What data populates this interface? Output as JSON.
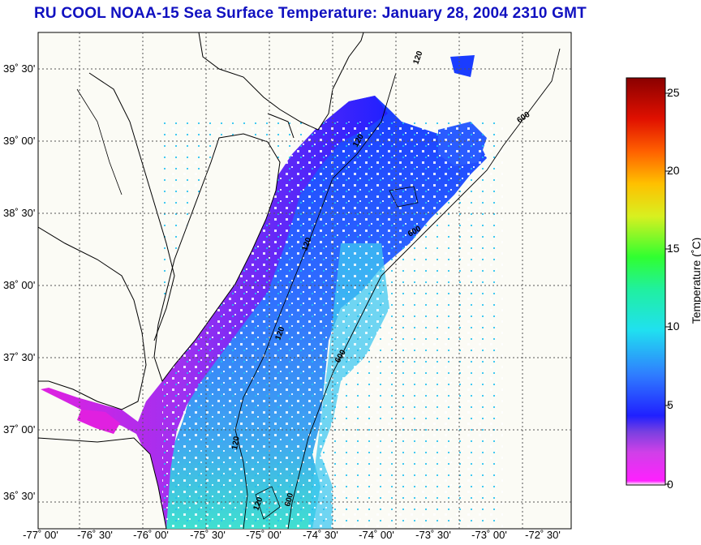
{
  "title": "RU COOL  NOAA-15  Sea Surface Temperature:  January 28, 2004 2310 GMT",
  "map": {
    "lat_labels": [
      "39˚ 30'",
      "39˚ 00'",
      "38˚ 30'",
      "38˚ 00'",
      "37˚ 30'",
      "37˚ 00'",
      "36˚ 30'"
    ],
    "lon_labels": [
      "-77˚ 00'",
      "-76˚ 30'",
      "-76˚ 00'",
      "-75˚ 30'",
      "-75˚ 00'",
      "-74˚ 30'",
      "-74˚ 00'",
      "-73˚ 30'",
      "-73˚ 00'",
      "-72˚ 30'"
    ],
    "contour_labels": [
      "120",
      "120",
      "120",
      "120",
      "120",
      "120",
      "600",
      "600",
      "600",
      "600"
    ],
    "colors": {
      "land": "#fbfbf5",
      "coast": "#000000",
      "grid": "#555555"
    }
  },
  "colorbar": {
    "label": "Temperature (˚C)",
    "ticks": [
      "25",
      "20",
      "15",
      "10",
      "5",
      "0"
    ],
    "range": [
      0,
      26
    ]
  }
}
